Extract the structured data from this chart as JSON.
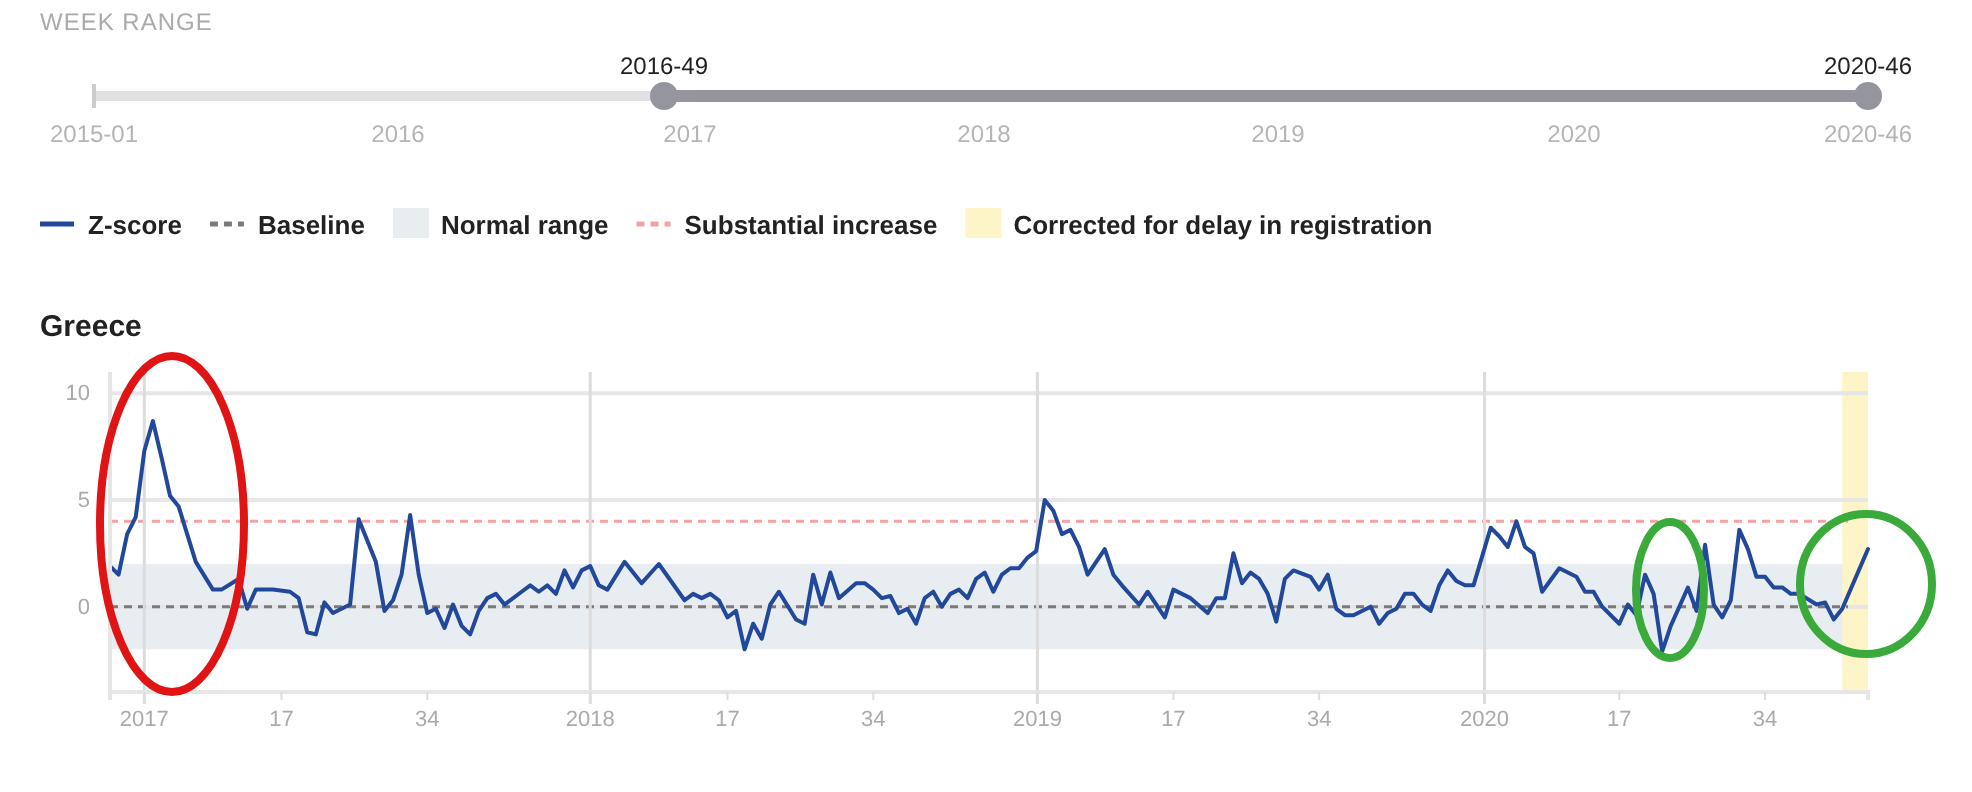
{
  "chart_data": {
    "type": "line",
    "title": "Greece",
    "annotations": [
      "WEEK RANGE",
      "2015-01",
      "2016",
      "2017",
      "2018",
      "2019",
      "2020",
      "2020-46",
      "2016-49",
      "2020-46"
    ],
    "legend": "top left",
    "grid": "y",
    "xlim": [
      "2016-12-05",
      "2020-11-09"
    ],
    "xticks": [
      {
        "value": "2017-01-02",
        "label": "2017"
      },
      {
        "value": "2017-04-24",
        "label": "17"
      },
      {
        "value": "2017-08-21",
        "label": "34"
      },
      {
        "value": "2018-01-01",
        "label": "2018"
      },
      {
        "value": "2018-04-23",
        "label": "17"
      },
      {
        "value": "2018-08-20",
        "label": "34"
      },
      {
        "value": "2019-01-01",
        "label": "2019"
      },
      {
        "value": "2019-04-22",
        "label": "17"
      },
      {
        "value": "2019-08-19",
        "label": "34"
      },
      {
        "value": "2020-01-01",
        "label": "2020"
      },
      {
        "value": "2020-04-20",
        "label": "17"
      },
      {
        "value": "2020-08-17",
        "label": "34"
      }
    ],
    "ylim": [
      -4,
      11
    ],
    "yticks": [
      0,
      5,
      10
    ],
    "ref_lines": [
      {
        "axis": "y",
        "value": 0,
        "label": "Baseline",
        "color": "#7a7a7a",
        "line_style": "dashed"
      },
      {
        "axis": "y",
        "value": 4,
        "label": "Substantial increase",
        "color": "#f4a3a3",
        "line_style": "dashed"
      },
      {
        "axis": "x",
        "value": "2017-01-02",
        "color": "#dcdcdc"
      },
      {
        "axis": "x",
        "value": "2018-01-01",
        "color": "#dcdcdc"
      },
      {
        "axis": "x",
        "value": "2019-01-01",
        "color": "#dcdcdc"
      },
      {
        "axis": "x",
        "value": "2020-01-01",
        "color": "#dcdcdc"
      }
    ],
    "bands": [
      {
        "axis": "y",
        "from": -2,
        "to": 2,
        "label": "Normal range",
        "color": "#e8edf2"
      },
      {
        "axis": "x",
        "from": "2020-10-19",
        "to": "2020-11-09",
        "label": "Corrected for delay in registration",
        "color": "#fdf4c7"
      }
    ],
    "series": [
      {
        "name": "Z-score",
        "color": "#21489a",
        "x": [
          "2016-12-05",
          "2016-12-12",
          "2016-12-19",
          "2016-12-26",
          "2017-01-02",
          "2017-01-09",
          "2017-01-16",
          "2017-01-23",
          "2017-01-30",
          "2017-02-06",
          "2017-02-13",
          "2017-02-27",
          "2017-03-06",
          "2017-03-20",
          "2017-03-27",
          "2017-04-03",
          "2017-04-17",
          "2017-05-01",
          "2017-05-08",
          "2017-05-15",
          "2017-05-22",
          "2017-05-29",
          "2017-06-05",
          "2017-06-19",
          "2017-06-26",
          "2017-07-10",
          "2017-07-17",
          "2017-07-24",
          "2017-07-31",
          "2017-08-07",
          "2017-08-14",
          "2017-08-21",
          "2017-08-28",
          "2017-09-04",
          "2017-09-11",
          "2017-09-18",
          "2017-09-25",
          "2017-10-02",
          "2017-10-09",
          "2017-10-16",
          "2017-10-23",
          "2017-11-06",
          "2017-11-13",
          "2017-11-20",
          "2017-11-27",
          "2017-12-04",
          "2017-12-11",
          "2017-12-18",
          "2017-12-25",
          "2018-01-01",
          "2018-01-08",
          "2018-01-15",
          "2018-01-29",
          "2018-02-12",
          "2018-02-26",
          "2018-03-19",
          "2018-03-26",
          "2018-04-02",
          "2018-04-09",
          "2018-04-16",
          "2018-04-23",
          "2018-04-30",
          "2018-05-07",
          "2018-05-14",
          "2018-05-21",
          "2018-05-28",
          "2018-06-04",
          "2018-06-18",
          "2018-06-25",
          "2018-07-02",
          "2018-07-09",
          "2018-07-16",
          "2018-07-23",
          "2018-08-06",
          "2018-08-13",
          "2018-08-20",
          "2018-08-27",
          "2018-09-03",
          "2018-09-10",
          "2018-09-17",
          "2018-09-24",
          "2018-10-01",
          "2018-10-08",
          "2018-10-15",
          "2018-10-22",
          "2018-10-29",
          "2018-11-05",
          "2018-11-12",
          "2018-11-19",
          "2018-11-26",
          "2018-12-03",
          "2018-12-10",
          "2018-12-17",
          "2018-12-24",
          "2018-12-31",
          "2019-01-07",
          "2019-01-14",
          "2019-01-21",
          "2019-01-28",
          "2019-02-04",
          "2019-02-11",
          "2019-02-25",
          "2019-03-04",
          "2019-03-11",
          "2019-03-25",
          "2019-04-01",
          "2019-04-15",
          "2019-04-22",
          "2019-05-06",
          "2019-05-20",
          "2019-05-27",
          "2019-06-03",
          "2019-06-10",
          "2019-06-17",
          "2019-06-24",
          "2019-07-01",
          "2019-07-08",
          "2019-07-15",
          "2019-07-22",
          "2019-07-29",
          "2019-08-12",
          "2019-08-19",
          "2019-08-26",
          "2019-09-02",
          "2019-09-09",
          "2019-09-16",
          "2019-09-30",
          "2019-10-07",
          "2019-10-14",
          "2019-10-21",
          "2019-10-28",
          "2019-11-04",
          "2019-11-11",
          "2019-11-18",
          "2019-11-25",
          "2019-12-02",
          "2019-12-09",
          "2019-12-16",
          "2019-12-23",
          "2020-01-06",
          "2020-01-13",
          "2020-01-20",
          "2020-01-27",
          "2020-02-03",
          "2020-02-10",
          "2020-02-17",
          "2020-03-02",
          "2020-03-16",
          "2020-03-23",
          "2020-03-30",
          "2020-04-06",
          "2020-04-20",
          "2020-04-27",
          "2020-05-04",
          "2020-05-11",
          "2020-05-18",
          "2020-05-25",
          "2020-06-01",
          "2020-06-15",
          "2020-06-22",
          "2020-06-29",
          "2020-07-06",
          "2020-07-13",
          "2020-07-20",
          "2020-07-27",
          "2020-08-03",
          "2020-08-10",
          "2020-08-17",
          "2020-08-24",
          "2020-08-31",
          "2020-09-07",
          "2020-09-14",
          "2020-09-28",
          "2020-10-05",
          "2020-10-12",
          "2020-10-19",
          "2020-11-09"
        ],
        "values": [
          1.9,
          1.5,
          3.4,
          4.2,
          7.3,
          8.7,
          7.0,
          5.2,
          4.7,
          3.4,
          2.1,
          0.8,
          0.8,
          1.3,
          -0.1,
          0.8,
          0.8,
          0.7,
          0.4,
          -1.2,
          -1.3,
          0.2,
          -0.3,
          0.1,
          4.1,
          2.1,
          -0.2,
          0.3,
          1.5,
          4.3,
          1.5,
          -0.3,
          -0.1,
          -1.0,
          0.1,
          -0.9,
          -1.3,
          -0.2,
          0.4,
          0.6,
          0.1,
          0.7,
          1.0,
          0.7,
          1.0,
          0.6,
          1.7,
          0.9,
          1.7,
          1.9,
          1.0,
          0.8,
          2.1,
          1.1,
          2.0,
          0.3,
          0.6,
          0.4,
          0.6,
          0.3,
          -0.5,
          -0.2,
          -2.0,
          -0.8,
          -1.5,
          0.1,
          0.7,
          -0.6,
          -0.8,
          1.5,
          0.1,
          1.6,
          0.4,
          1.1,
          1.1,
          0.8,
          0.4,
          0.5,
          -0.3,
          -0.1,
          -0.8,
          0.4,
          0.7,
          0.0,
          0.6,
          0.8,
          0.4,
          1.3,
          1.6,
          0.7,
          1.5,
          1.8,
          1.8,
          2.3,
          2.6,
          5.0,
          4.5,
          3.4,
          3.6,
          2.8,
          1.5,
          2.7,
          1.5,
          1.0,
          0.1,
          0.7,
          -0.5,
          0.8,
          0.4,
          -0.3,
          0.4,
          0.4,
          2.5,
          1.1,
          1.6,
          1.3,
          0.6,
          -0.7,
          1.3,
          1.7,
          1.4,
          0.8,
          1.5,
          -0.1,
          -0.4,
          -0.4,
          0.0,
          -0.8,
          -0.3,
          -0.1,
          0.6,
          0.6,
          0.1,
          -0.2,
          1.0,
          1.7,
          1.2,
          1.0,
          1.0,
          3.7,
          3.3,
          2.8,
          4.0,
          2.8,
          2.5,
          0.7,
          1.8,
          1.4,
          0.7,
          0.7,
          0.0,
          -0.8,
          0.1,
          -0.4,
          1.5,
          0.6,
          -2.1,
          -0.9,
          0.9,
          -0.2,
          2.9,
          0.1,
          -0.5,
          0.3,
          3.6,
          2.7,
          1.4,
          1.4,
          0.9,
          0.9,
          0.6,
          0.6,
          0.1,
          0.2,
          -0.6,
          -0.1,
          2.7
        ]
      }
    ]
  }
}
